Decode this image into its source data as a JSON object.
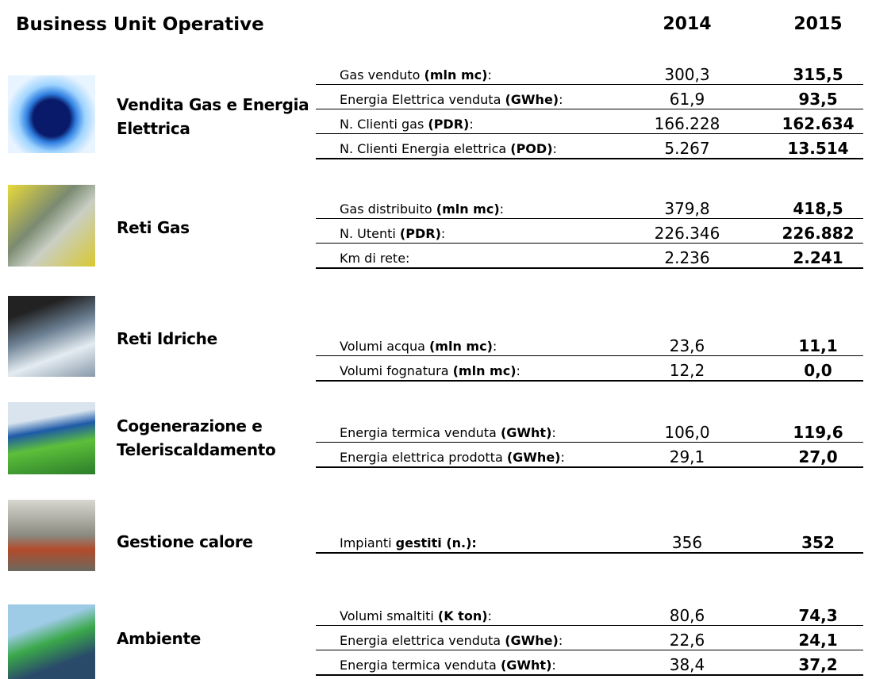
{
  "header": {
    "title": "Business Unit Operative",
    "years": [
      "2014",
      "2015"
    ]
  },
  "sections": [
    {
      "name": "Vendita Gas e Energia Elettrica",
      "rows": [
        {
          "label": [
            "Gas venduto ",
            "(mln mc)",
            ":"
          ],
          "v2014": "300,3",
          "v2015": "315,5"
        },
        {
          "label": [
            "Energia Elettrica venduta ",
            "(GWhe)",
            ":"
          ],
          "v2014": "61,9",
          "v2015": "93,5"
        },
        {
          "label": [
            "N. Clienti gas ",
            "(PDR)",
            ":"
          ],
          "v2014": "166.228",
          "v2015": "162.634"
        },
        {
          "label": [
            "N. Clienti Energia elettrica ",
            "(POD)",
            ":"
          ],
          "v2014": "5.267",
          "v2015": "13.514"
        }
      ]
    },
    {
      "name": "Reti Gas",
      "rows": [
        {
          "label": [
            "Gas distribuito ",
            "(mln mc)",
            ":"
          ],
          "v2014": "379,8",
          "v2015": "418,5"
        },
        {
          "label": [
            "N. Utenti ",
            "(PDR)",
            ":"
          ],
          "v2014": "226.346",
          "v2015": "226.882"
        },
        {
          "label": [
            "Km di rete:"
          ],
          "v2014": "2.236",
          "v2015": "2.241"
        }
      ]
    },
    {
      "name": "Reti Idriche",
      "rows": [
        {
          "label": [
            "Volumi acqua ",
            "(mln mc)",
            ":"
          ],
          "v2014": "23,6",
          "v2015": "11,1"
        },
        {
          "label": [
            "Volumi fognatura ",
            "(mln mc)",
            ":"
          ],
          "v2014": "12,2",
          "v2015": "0,0"
        }
      ]
    },
    {
      "name": "Cogenerazione e Teleriscaldamento",
      "rows": [
        {
          "label": [
            "Energia termica venduta ",
            "(GWht)",
            ":"
          ],
          "v2014": "106,0",
          "v2015": "119,6"
        },
        {
          "label": [
            "Energia elettrica prodotta ",
            "(GWhe)",
            ":"
          ],
          "v2014": "29,1",
          "v2015": "27,0"
        }
      ]
    },
    {
      "name": "Gestione calore",
      "rows": [
        {
          "label": [
            "Impianti ",
            "gestiti (n.):"
          ],
          "v2014": "356",
          "v2015": "352"
        }
      ]
    },
    {
      "name": "Ambiente",
      "rows": [
        {
          "label": [
            "Volumi smaltiti ",
            "(K ton)",
            ":"
          ],
          "v2014": "80,6",
          "v2015": "74,3"
        },
        {
          "label": [
            "Energia elettrica venduta ",
            "(GWhe)",
            ":"
          ],
          "v2014": "22,6",
          "v2015": "24,1"
        },
        {
          "label": [
            "Energia termica venduta ",
            "(GWht)",
            ":"
          ],
          "v2014": "38,4",
          "v2015": "37,2"
        }
      ]
    }
  ]
}
